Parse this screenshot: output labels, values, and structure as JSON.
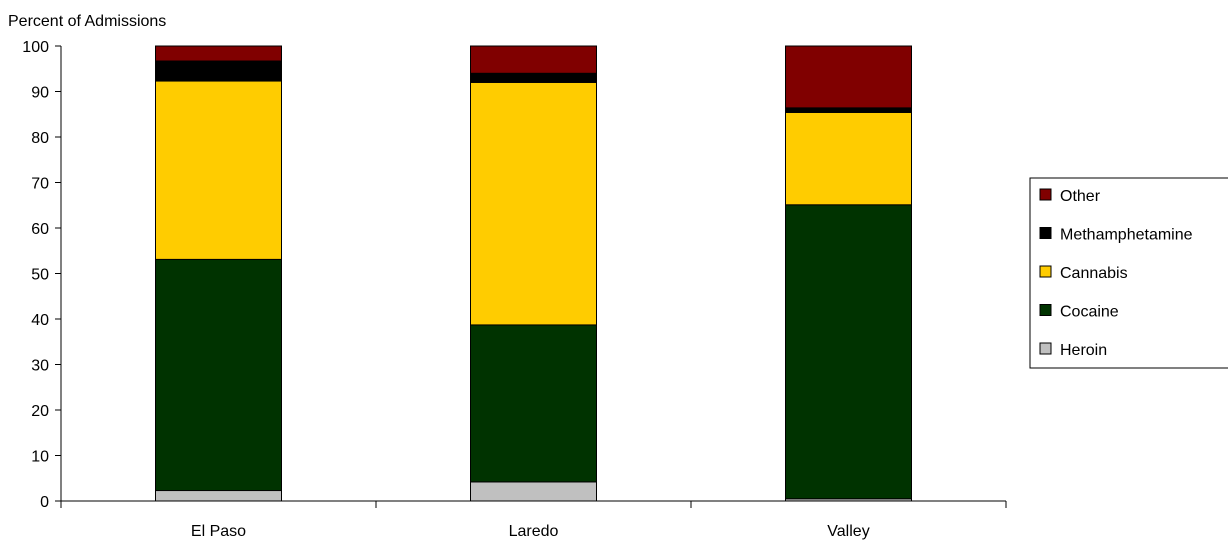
{
  "chart_data": {
    "type": "bar",
    "stacked": true,
    "ylabel": "Percent of Admissions",
    "ylim": [
      0,
      100
    ],
    "yticks": [
      0,
      10,
      20,
      30,
      40,
      50,
      60,
      70,
      80,
      90,
      100
    ],
    "categories": [
      "El Paso",
      "Laredo",
      "Valley"
    ],
    "series": [
      {
        "name": "Heroin",
        "color": "#C0C0C0",
        "values": [
          2.3,
          4.2,
          0.5
        ]
      },
      {
        "name": "Cocaine",
        "color": "#003300",
        "values": [
          50.8,
          34.5,
          64.6
        ]
      },
      {
        "name": "Cannabis",
        "color": "#FFCC00",
        "values": [
          39.2,
          53.3,
          20.3
        ]
      },
      {
        "name": "Methamphetamine",
        "color": "#000000",
        "values": [
          4.4,
          2.0,
          1.0
        ]
      },
      {
        "name": "Other",
        "color": "#800000",
        "values": [
          3.3,
          6.0,
          13.6
        ]
      }
    ],
    "legend_order": [
      "Other",
      "Methamphetamine",
      "Cannabis",
      "Cocaine",
      "Heroin"
    ],
    "legend_position": "right",
    "grid": false
  }
}
